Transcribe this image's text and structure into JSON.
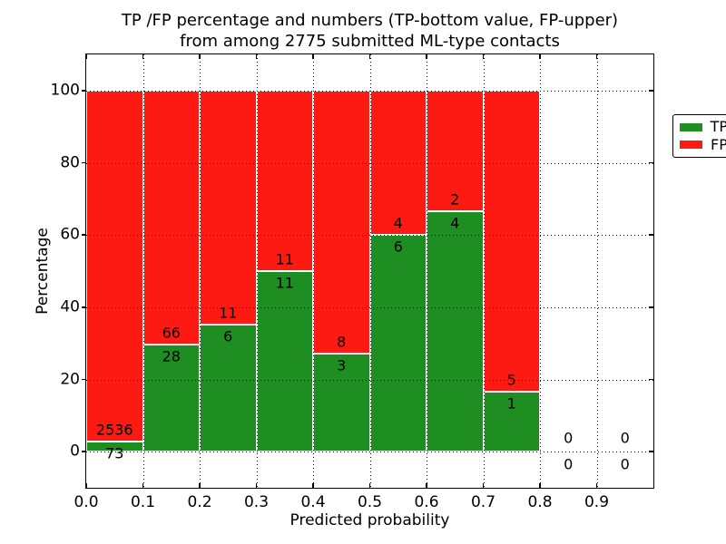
{
  "title": {
    "line1": "TP /FP percentage and numbers (TP-bottom value, FP-upper)",
    "line2": "from among 2775 submitted ML-type contacts"
  },
  "axes": {
    "xlabel": "Predicted probability",
    "ylabel": "Percentage",
    "x_tick_labels": [
      "0.0",
      "0.1",
      "0.2",
      "0.3",
      "0.4",
      "0.5",
      "0.6",
      "0.7",
      "0.8",
      "0.9"
    ],
    "y_tick_labels": [
      "0",
      "20",
      "40",
      "60",
      "80",
      "100"
    ]
  },
  "legend": {
    "position": "upper right",
    "items": [
      {
        "label": "TP",
        "color": "#1e8e22"
      },
      {
        "label": "FP",
        "color": "#fc1a13"
      }
    ]
  },
  "chart_data": {
    "type": "bar",
    "stacked": true,
    "normalized_to_percent": true,
    "title": "TP /FP percentage and numbers (TP-bottom value, FP-upper) from among 2775 submitted ML-type contacts",
    "xlabel": "Predicted probability",
    "ylabel": "Percentage",
    "xlim": [
      0.0,
      1.0
    ],
    "ylim": [
      -10,
      110
    ],
    "x_ticks": [
      0.0,
      0.1,
      0.2,
      0.3,
      0.4,
      0.5,
      0.6,
      0.7,
      0.8,
      0.9
    ],
    "y_ticks": [
      0,
      20,
      40,
      60,
      80,
      100
    ],
    "grid": true,
    "grid_linestyle": "dotted",
    "legend_position": "upper right",
    "bin_width": 0.1,
    "bin_starts": [
      0.0,
      0.1,
      0.2,
      0.3,
      0.4,
      0.5,
      0.6,
      0.7,
      0.8,
      0.9
    ],
    "categories": [
      "0.0-0.1",
      "0.1-0.2",
      "0.2-0.3",
      "0.3-0.4",
      "0.4-0.5",
      "0.5-0.6",
      "0.6-0.7",
      "0.7-0.8",
      "0.8-0.9",
      "0.9-1.0"
    ],
    "series": [
      {
        "name": "TP",
        "color": "#1e8e22",
        "counts": [
          73,
          28,
          6,
          11,
          3,
          6,
          4,
          1,
          0,
          0
        ]
      },
      {
        "name": "FP",
        "color": "#fc1a13",
        "counts": [
          2536,
          66,
          11,
          11,
          8,
          4,
          2,
          5,
          0,
          0
        ]
      }
    ],
    "tp_percent_of_bin": [
      2.8,
      29.8,
      35.3,
      50.0,
      27.3,
      60.0,
      66.7,
      16.7,
      0,
      0
    ],
    "total_contacts": 2775,
    "bar_edge_color": "#ffffff"
  }
}
